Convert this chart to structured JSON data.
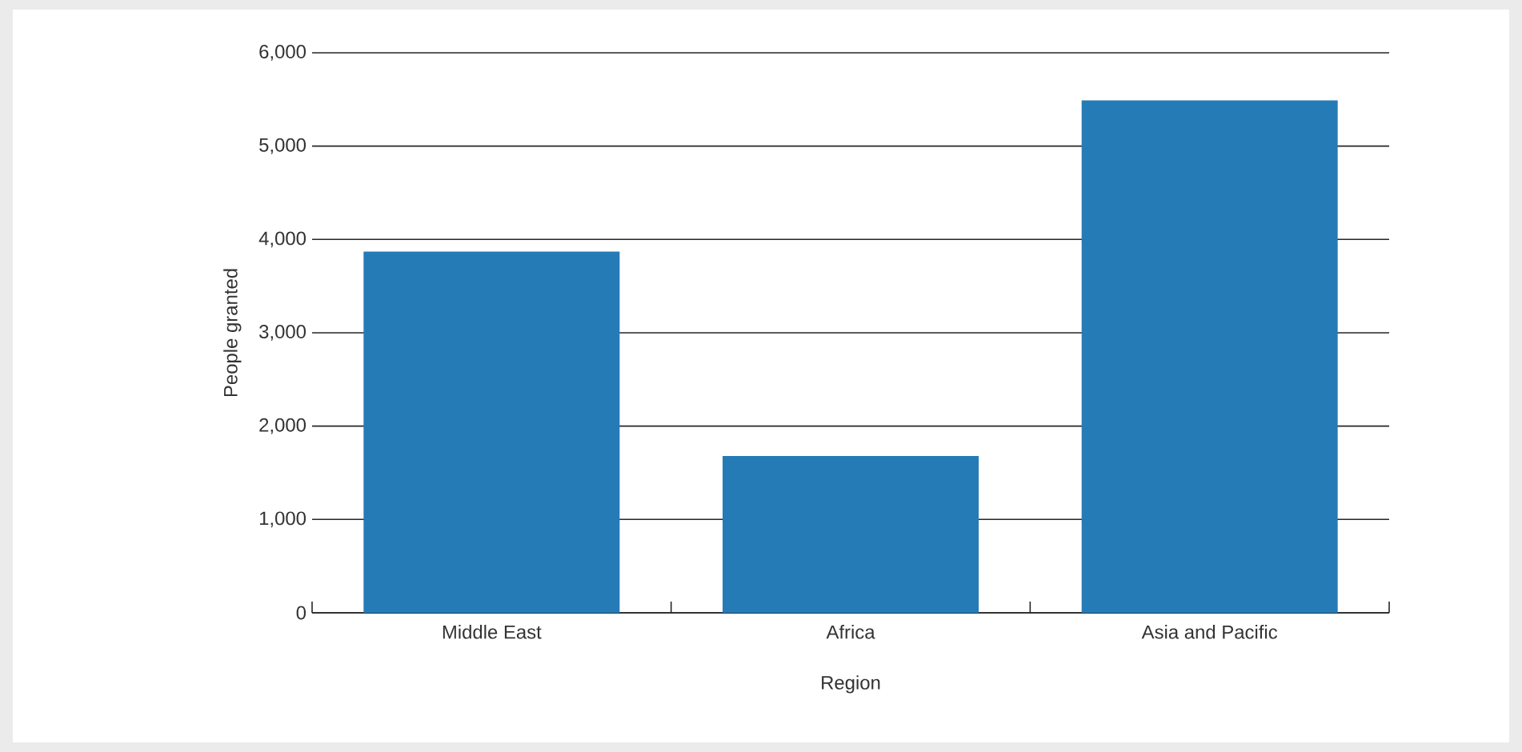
{
  "chart_data": {
    "type": "bar",
    "xlabel": "Region",
    "ylabel": "People granted",
    "categories": [
      "Middle East",
      "Africa",
      "Asia and Pacific"
    ],
    "values": [
      3870,
      1680,
      5490
    ],
    "color": "#257bb6",
    "ylim": [
      0,
      6000
    ],
    "yticks": [
      {
        "value": 0,
        "label": "0"
      },
      {
        "value": 1000,
        "label": "1,000"
      },
      {
        "value": 2000,
        "label": "2,000"
      },
      {
        "value": 3000,
        "label": "3,000"
      },
      {
        "value": 4000,
        "label": "4,000"
      },
      {
        "value": 5000,
        "label": "5,000"
      },
      {
        "value": 6000,
        "label": "6,000"
      }
    ],
    "grid": "y"
  }
}
